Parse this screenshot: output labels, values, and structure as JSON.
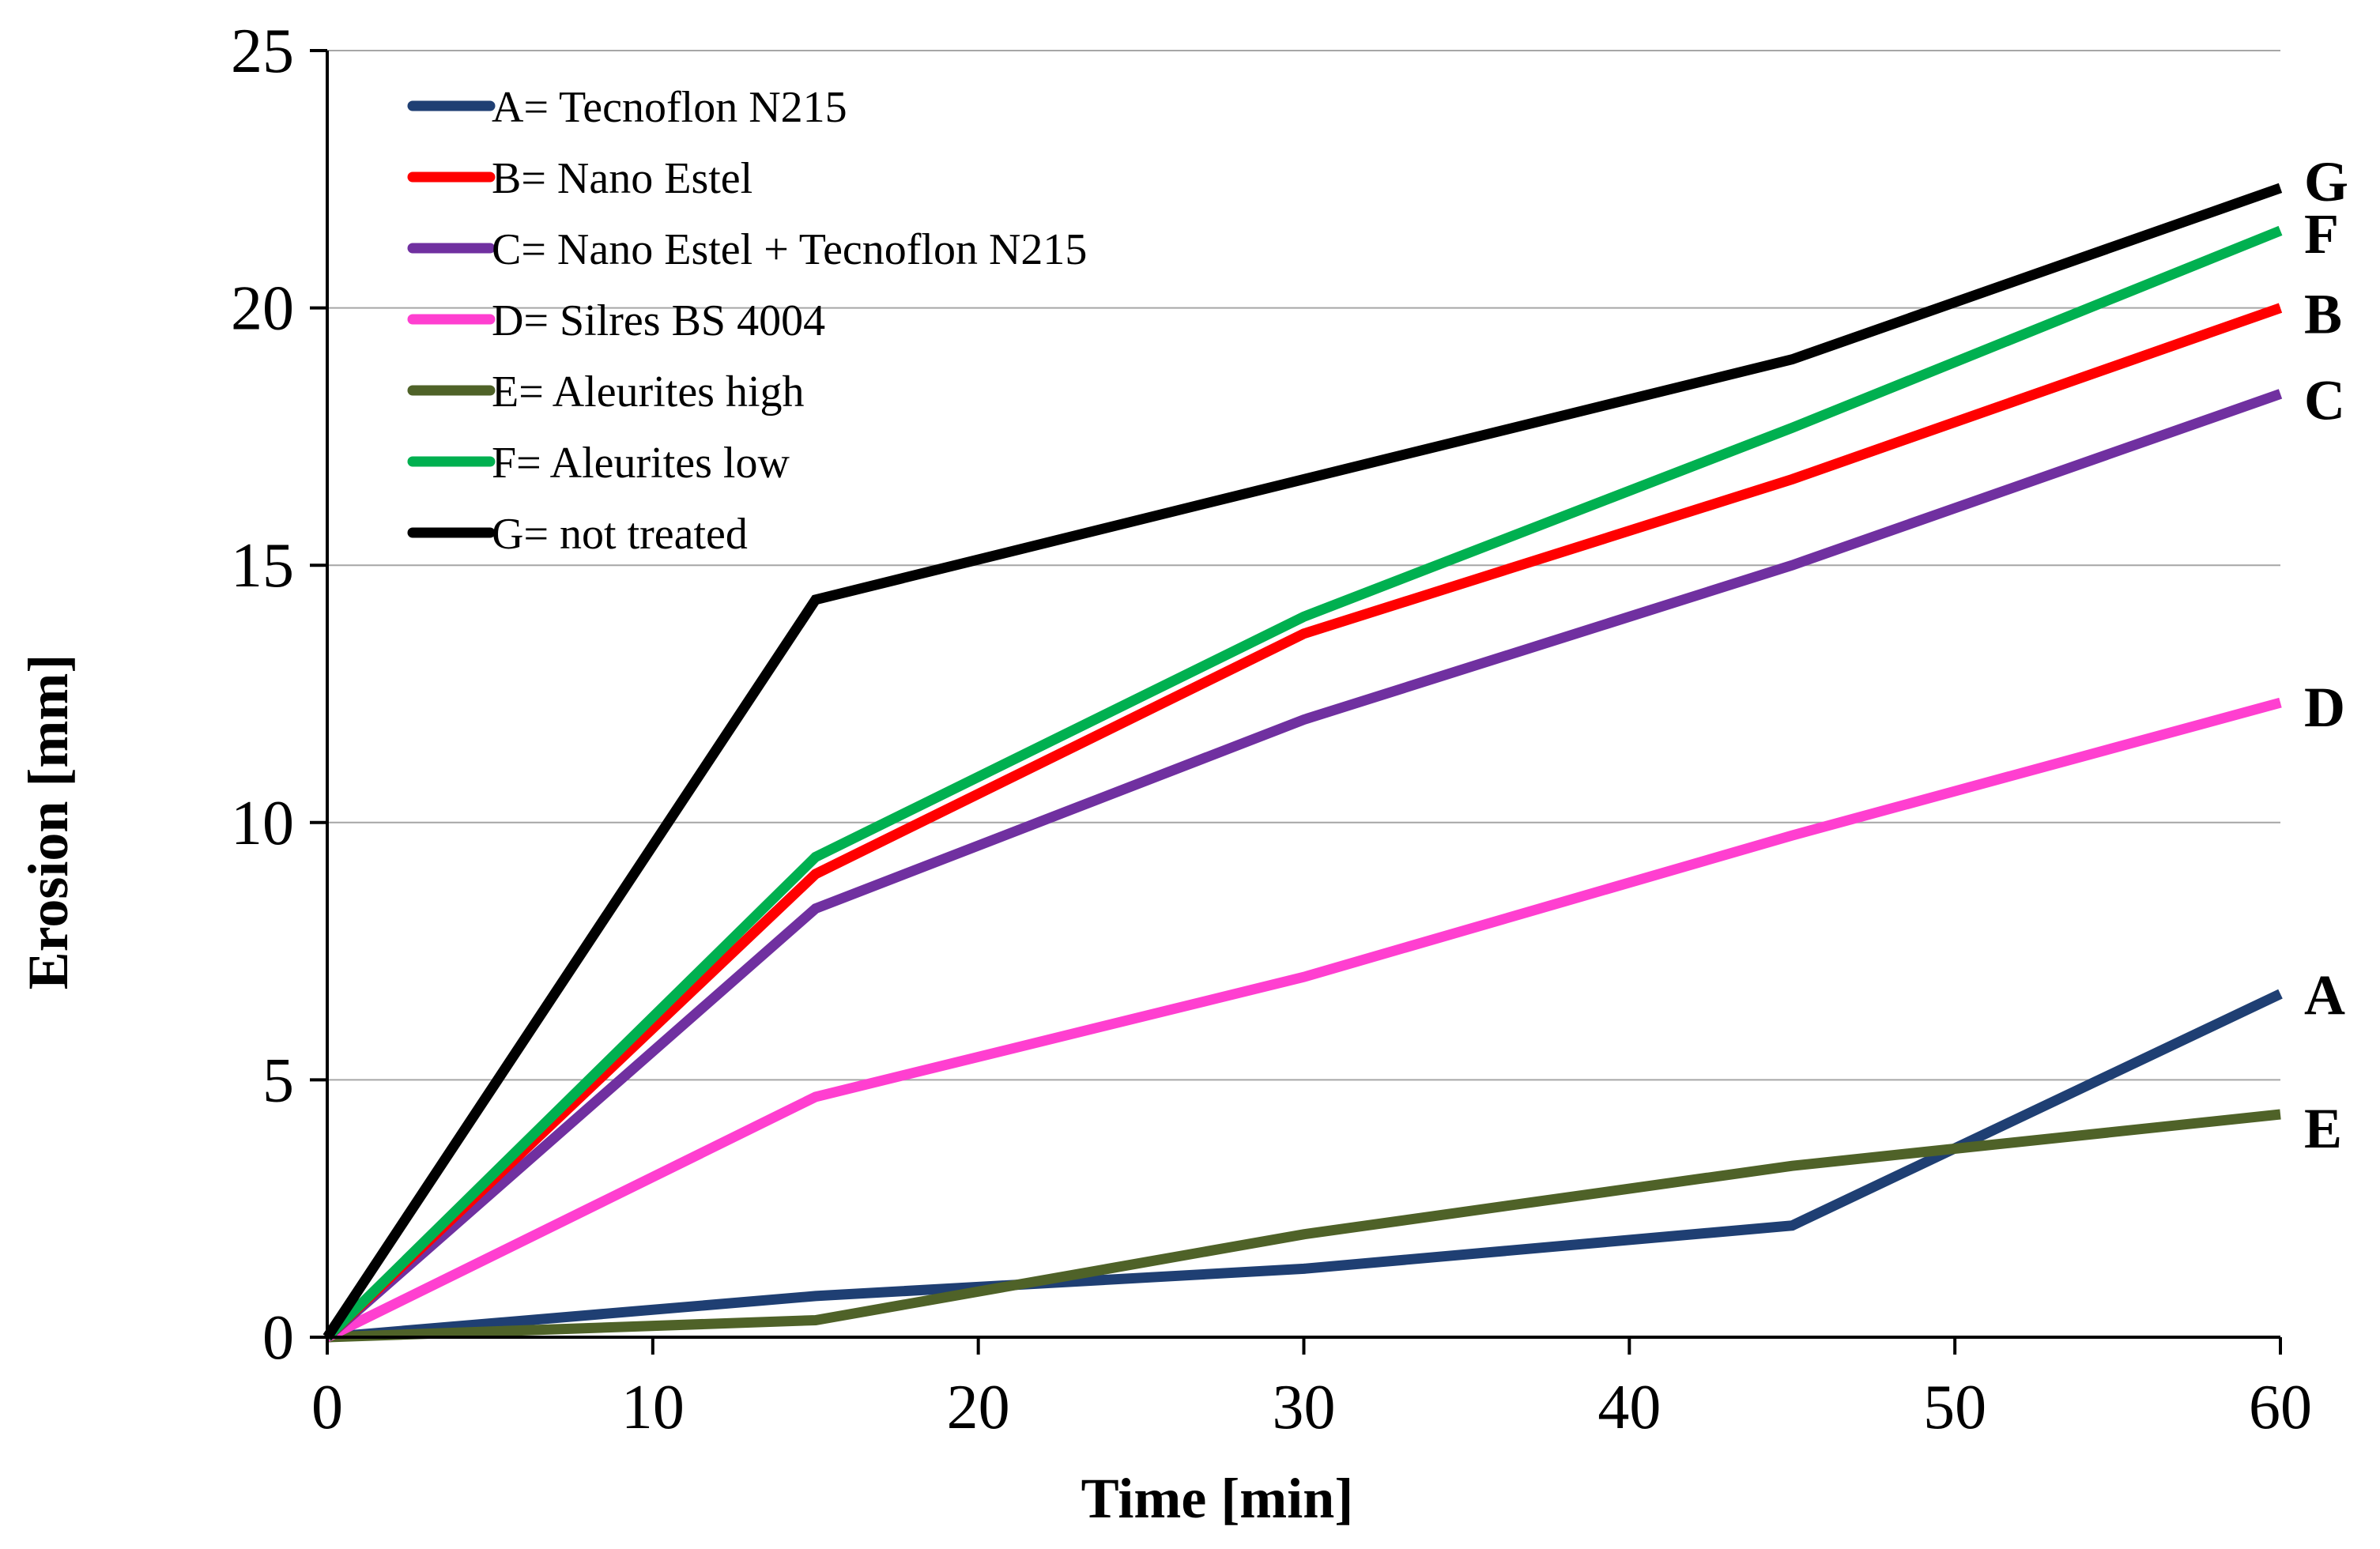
{
  "chart_data": {
    "type": "line",
    "title": "",
    "xlabel": "Time [min]",
    "ylabel": "Erosion [mm]",
    "xlim": [
      0,
      60
    ],
    "ylim": [
      0,
      25
    ],
    "x_ticks": [
      "0",
      "10",
      "20",
      "30",
      "40",
      "50",
      "60"
    ],
    "y_ticks": [
      "0",
      "5",
      "10",
      "15",
      "20",
      "25"
    ],
    "grid": "horizontal",
    "legend_position": "top-left",
    "x": [
      0,
      15,
      30,
      45,
      60
    ],
    "series": [
      {
        "name": "A= Tecnoflon N215",
        "end_label": "A",
        "color": "#1f3f73",
        "values": [
          0,
          0.8,
          1.33,
          2.17,
          6.67
        ]
      },
      {
        "name": "B= Nano Estel",
        "end_label": "B",
        "color": "#ff0000",
        "values": [
          0,
          9.0,
          13.67,
          16.67,
          20.0
        ]
      },
      {
        "name": "C= Nano Estel + Tecnoflon N215",
        "end_label": "C",
        "color": "#7030a0",
        "values": [
          0,
          8.33,
          12.0,
          15.0,
          18.33
        ]
      },
      {
        "name": "D= Silres BS 4004",
        "end_label": "D",
        "color": "#ff3fd0",
        "values": [
          0,
          4.67,
          7.0,
          9.75,
          12.33
        ]
      },
      {
        "name": "E= Aleurites high",
        "end_label": "E",
        "color": "#4f6228",
        "values": [
          0,
          0.33,
          2.0,
          3.33,
          4.33
        ]
      },
      {
        "name": "F= Aleurites low",
        "end_label": "F",
        "color": "#00b050",
        "values": [
          0,
          9.33,
          14.0,
          17.67,
          21.5
        ]
      },
      {
        "name": "G= not treated",
        "end_label": "G",
        "color": "#000000",
        "values": [
          0,
          14.33,
          16.67,
          19.0,
          22.33
        ]
      }
    ]
  }
}
